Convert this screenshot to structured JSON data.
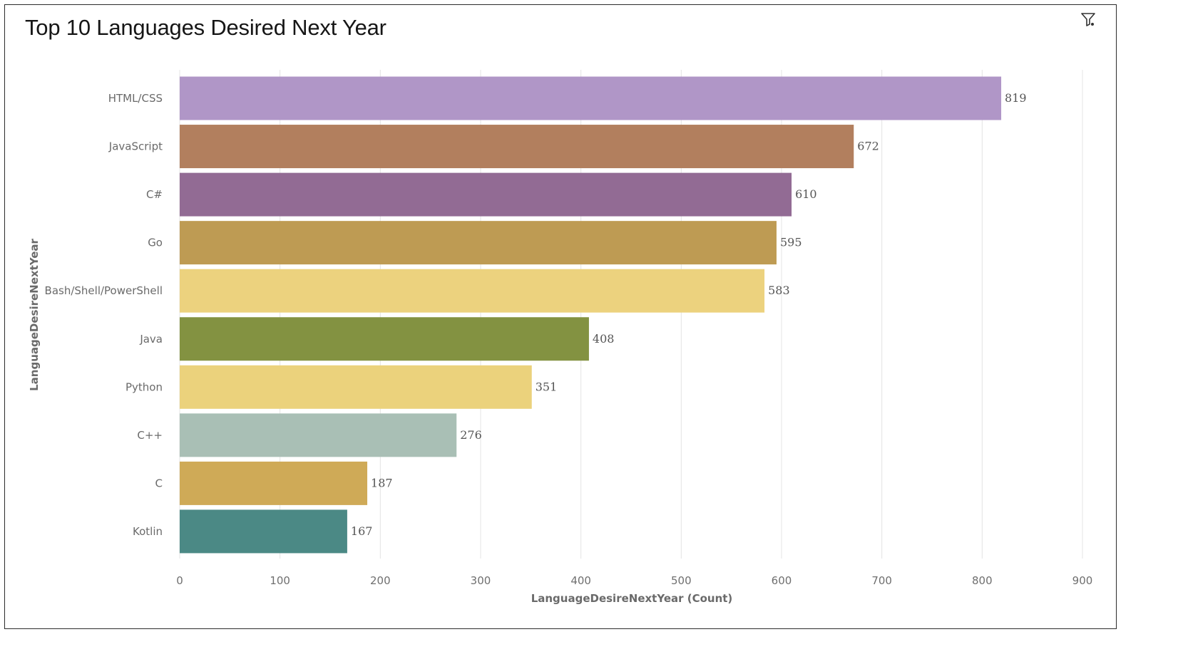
{
  "chart_data": {
    "type": "bar",
    "orientation": "horizontal",
    "title": "Top 10 Languages Desired Next Year",
    "xlabel": "LanguageDesireNextYear (Count)",
    "ylabel": "LanguageDesireNextYear",
    "categories": [
      "HTML/CSS",
      "JavaScript",
      "C#",
      "Go",
      "Bash/Shell/PowerShell",
      "Java",
      "Python",
      "C++",
      "C",
      "Kotlin"
    ],
    "values": [
      819,
      672,
      610,
      595,
      583,
      408,
      351,
      276,
      187,
      167
    ],
    "colors": [
      "#b096c7",
      "#b27f5e",
      "#926b94",
      "#be9b53",
      "#ecd27e",
      "#839241",
      "#ebd27c",
      "#a9bfb5",
      "#cfaa57",
      "#4b8985"
    ],
    "xlim": [
      0,
      900
    ],
    "xticks": [
      0,
      100,
      200,
      300,
      400,
      500,
      600,
      700,
      800,
      900
    ],
    "grid": "vertical",
    "data_labels": true
  },
  "toolbar": {
    "filter_icon": "filter-icon"
  }
}
